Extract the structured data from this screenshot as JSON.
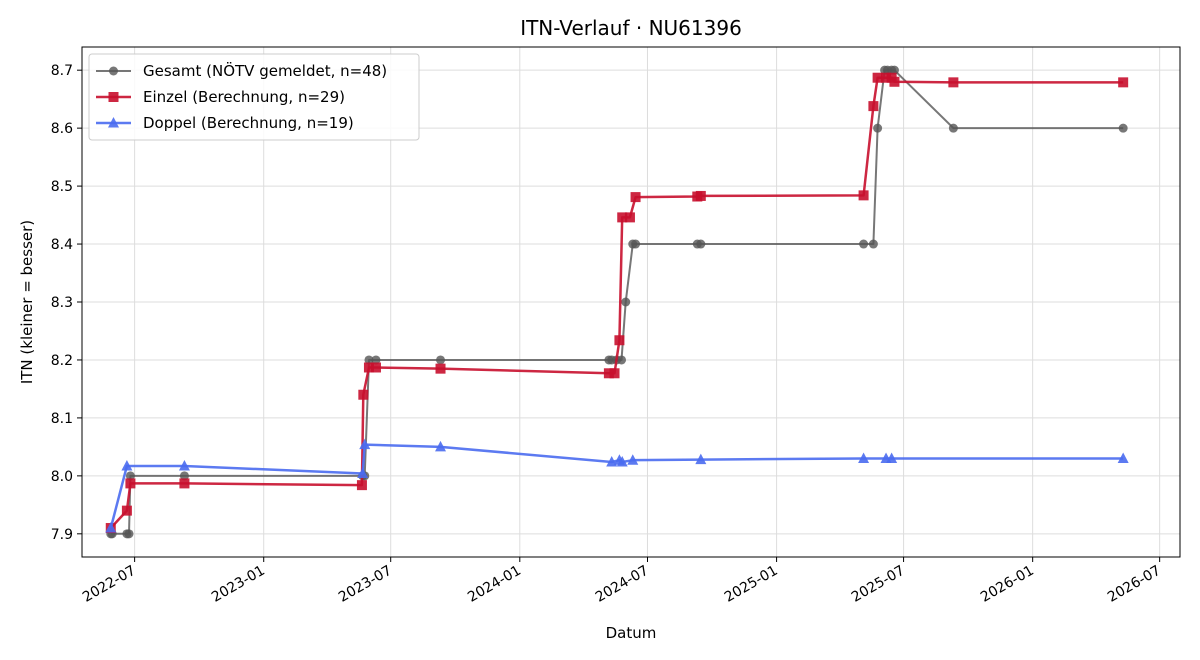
{
  "chart_data": {
    "type": "line",
    "title": "ITN-Verlauf · NU61396",
    "xlabel": "Datum",
    "ylabel": "ITN  (kleiner = besser)",
    "xlim": [
      "2022-04-17",
      "2026-07-30"
    ],
    "ylim": [
      7.86,
      8.74
    ],
    "x_ticks": [
      "2022-07-01",
      "2023-01-01",
      "2023-07-01",
      "2024-01-01",
      "2024-07-01",
      "2025-01-01",
      "2025-07-01",
      "2026-01-01",
      "2026-07-01"
    ],
    "x_tick_labels": [
      "2022-07",
      "2023-01",
      "2023-07",
      "2024-01",
      "2024-07",
      "2025-01",
      "2025-07",
      "2026-01",
      "2026-07"
    ],
    "y_ticks": [
      7.9,
      8.0,
      8.1,
      8.2,
      8.3,
      8.4,
      8.5,
      8.6,
      8.7
    ],
    "y_tick_labels": [
      "7.9",
      "8.0",
      "8.1",
      "8.2",
      "8.3",
      "8.4",
      "8.5",
      "8.6",
      "8.7"
    ],
    "grid": true,
    "legend_position": "top-left",
    "series": [
      {
        "name": "Gesamt (NÖTV gemeldet, n=48)",
        "color": "#555555",
        "marker": "circle",
        "x": [
          "2022-05-28",
          "2022-05-30",
          "2022-06-20",
          "2022-06-23",
          "2022-06-25",
          "2022-09-10",
          "2023-05-22",
          "2023-05-25",
          "2023-05-31",
          "2023-06-10",
          "2023-09-10",
          "2024-05-07",
          "2024-05-11",
          "2024-05-18",
          "2024-05-25",
          "2024-05-31",
          "2024-06-10",
          "2024-06-14",
          "2024-09-10",
          "2024-09-15",
          "2025-05-05",
          "2025-05-19",
          "2025-05-25",
          "2025-06-04",
          "2025-06-08",
          "2025-06-14",
          "2025-06-18",
          "2025-09-10",
          "2026-05-10"
        ],
        "values": [
          7.9,
          7.9,
          7.9,
          7.9,
          8.0,
          8.0,
          8.0,
          8.0,
          8.2,
          8.2,
          8.2,
          8.2,
          8.2,
          8.2,
          8.2,
          8.3,
          8.4,
          8.4,
          8.4,
          8.4,
          8.4,
          8.4,
          8.6,
          8.7,
          8.7,
          8.7,
          8.7,
          8.6,
          8.6
        ]
      },
      {
        "name": "Einzel (Berechnung, n=29)",
        "color": "#c8102e",
        "marker": "square",
        "x": [
          "2022-05-28",
          "2022-06-20",
          "2022-06-25",
          "2022-09-10",
          "2023-05-21",
          "2023-05-23",
          "2023-05-31",
          "2023-06-10",
          "2023-09-10",
          "2024-05-07",
          "2024-05-15",
          "2024-05-22",
          "2024-05-26",
          "2024-06-06",
          "2024-06-14",
          "2024-09-10",
          "2024-09-15",
          "2025-05-05",
          "2025-05-19",
          "2025-05-25",
          "2025-06-06",
          "2025-06-14",
          "2025-06-18",
          "2025-09-10",
          "2026-05-10"
        ],
        "values": [
          7.91,
          7.94,
          7.987,
          7.987,
          7.984,
          8.14,
          8.187,
          8.187,
          8.185,
          8.177,
          8.177,
          8.234,
          8.446,
          8.446,
          8.481,
          8.482,
          8.483,
          8.484,
          8.638,
          8.687,
          8.687,
          8.687,
          8.68,
          8.679,
          8.679
        ]
      },
      {
        "name": "Doppel (Berechnung, n=19)",
        "color": "#4a6cf0",
        "marker": "triangle",
        "x": [
          "2022-05-28",
          "2022-06-20",
          "2022-09-10",
          "2023-05-22",
          "2023-05-25",
          "2023-09-10",
          "2024-05-11",
          "2024-05-22",
          "2024-05-26",
          "2024-06-10",
          "2024-09-15",
          "2025-05-05",
          "2025-06-06",
          "2025-06-14",
          "2026-05-10"
        ],
        "values": [
          7.91,
          8.017,
          8.017,
          8.004,
          8.054,
          8.05,
          8.024,
          8.027,
          8.024,
          8.027,
          8.028,
          8.03,
          8.03,
          8.03,
          8.03
        ]
      }
    ]
  }
}
